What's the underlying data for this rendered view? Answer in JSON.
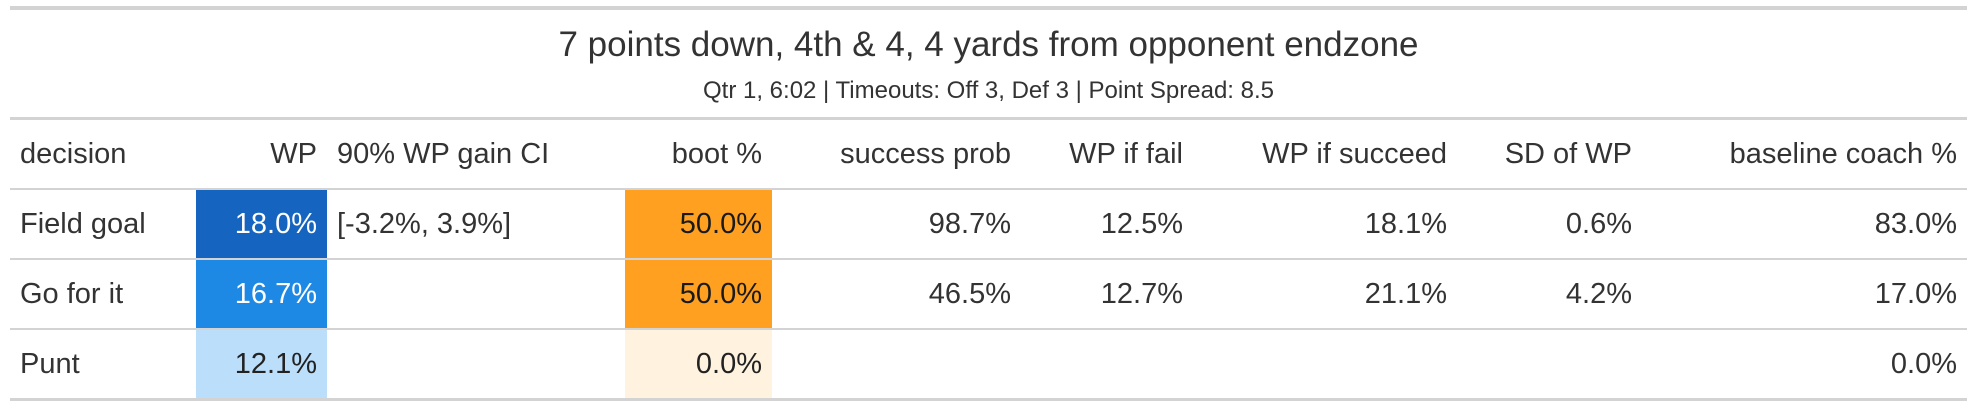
{
  "title": "7 points down, 4th & 4, 4 yards from opponent endzone",
  "subtitle": "Qtr 1, 6:02 | Timeouts: Off 3, Def 3 | Point Spread: 8.5",
  "columns": [
    "decision",
    "WP",
    "90% WP gain CI",
    "boot %",
    "success prob",
    "WP if fail",
    "WP if succeed",
    "SD of WP",
    "baseline coach %"
  ],
  "rows": [
    {
      "decision": "Field goal",
      "wp": "18.0%",
      "ci": "[-3.2%, 3.9%]",
      "boot": "50.0%",
      "success": "98.7%",
      "wp_fail": "12.5%",
      "wp_succeed": "18.1%",
      "sd": "0.6%",
      "coach": "83.0%",
      "wp_bg": "#1565c0",
      "wp_color": "#ffffff",
      "boot_bg": "#ffa020",
      "boot_color": "#1a1a1a"
    },
    {
      "decision": "Go for it",
      "wp": "16.7%",
      "ci": "",
      "boot": "50.0%",
      "success": "46.5%",
      "wp_fail": "12.7%",
      "wp_succeed": "21.1%",
      "sd": "4.2%",
      "coach": "17.0%",
      "wp_bg": "#1e88e5",
      "wp_color": "#ffffff",
      "boot_bg": "#ffa020",
      "boot_color": "#1a1a1a"
    },
    {
      "decision": "Punt",
      "wp": "12.1%",
      "ci": "",
      "boot": "0.0%",
      "success": "",
      "wp_fail": "",
      "wp_succeed": "",
      "sd": "",
      "coach": "0.0%",
      "wp_bg": "#bbdefb",
      "wp_color": "#222222",
      "boot_bg": "#fff3e0",
      "boot_color": "#222222"
    }
  ]
}
